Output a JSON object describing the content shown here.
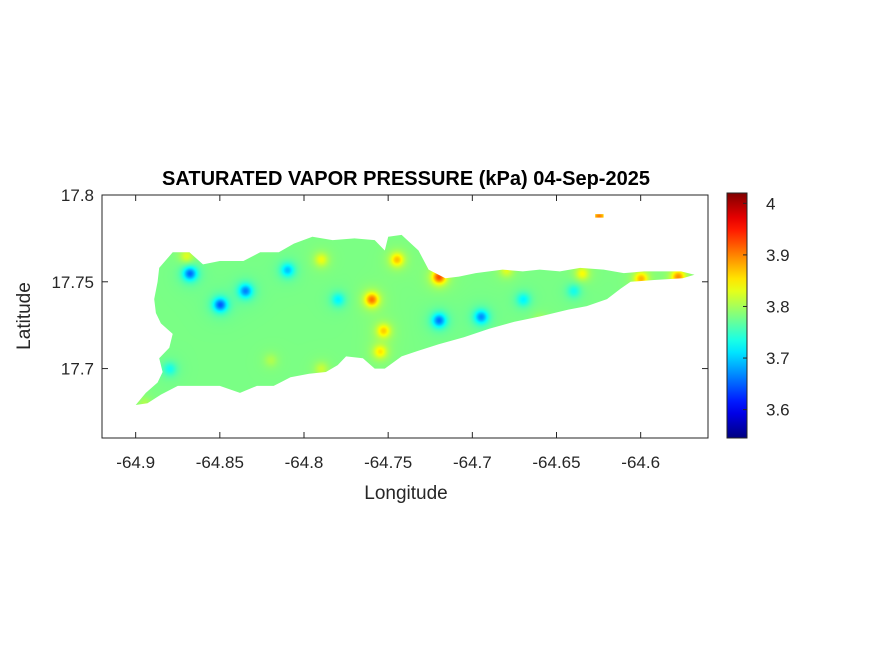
{
  "chart_data": {
    "type": "heatmap",
    "title": "SATURATED VAPOR PRESSURE (kPa) 04-Sep-2025",
    "xlabel": "Longitude",
    "ylabel": "Latitude",
    "xlim": [
      -64.92,
      -64.56
    ],
    "ylim": [
      17.66,
      17.8
    ],
    "x_ticks": [
      -64.9,
      -64.85,
      -64.8,
      -64.75,
      -64.7,
      -64.65,
      -64.6
    ],
    "x_tick_labels": [
      "-64.9",
      "-64.85",
      "-64.8",
      "-64.75",
      "-64.7",
      "-64.65",
      "-64.6"
    ],
    "y_ticks": [
      17.7,
      17.75,
      17.8
    ],
    "y_tick_labels": [
      "17.7",
      "17.75",
      "17.8"
    ],
    "colormap": "jet",
    "clim": [
      3.545,
      4.02
    ],
    "colorbar_ticks": [
      3.6,
      3.7,
      3.8,
      3.9,
      4
    ],
    "colorbar_tick_labels": [
      "3.6",
      "3.7",
      "3.8",
      "3.9",
      "4"
    ],
    "grid": false,
    "background_value": 3.78,
    "field_hotspots": [
      {
        "lon": -64.85,
        "lat": 17.737,
        "value": 3.56
      },
      {
        "lon": -64.868,
        "lat": 17.755,
        "value": 3.57
      },
      {
        "lon": -64.835,
        "lat": 17.745,
        "value": 3.59
      },
      {
        "lon": -64.81,
        "lat": 17.757,
        "value": 3.64
      },
      {
        "lon": -64.78,
        "lat": 17.74,
        "value": 3.68
      },
      {
        "lon": -64.72,
        "lat": 17.728,
        "value": 3.58
      },
      {
        "lon": -64.695,
        "lat": 17.73,
        "value": 3.6
      },
      {
        "lon": -64.67,
        "lat": 17.74,
        "value": 3.68
      },
      {
        "lon": -64.64,
        "lat": 17.745,
        "value": 3.7
      },
      {
        "lon": -64.76,
        "lat": 17.74,
        "value": 3.99
      },
      {
        "lon": -64.753,
        "lat": 17.722,
        "value": 3.92
      },
      {
        "lon": -64.72,
        "lat": 17.753,
        "value": 4.02
      },
      {
        "lon": -64.745,
        "lat": 17.763,
        "value": 3.93
      },
      {
        "lon": -64.578,
        "lat": 17.753,
        "value": 3.97
      },
      {
        "lon": -64.6,
        "lat": 17.752,
        "value": 3.94
      },
      {
        "lon": -64.635,
        "lat": 17.755,
        "value": 3.88
      },
      {
        "lon": -64.68,
        "lat": 17.757,
        "value": 3.86
      },
      {
        "lon": -64.79,
        "lat": 17.763,
        "value": 3.87
      },
      {
        "lon": -64.87,
        "lat": 17.765,
        "value": 3.86
      },
      {
        "lon": -64.755,
        "lat": 17.71,
        "value": 3.9
      },
      {
        "lon": -64.82,
        "lat": 17.705,
        "value": 3.82
      },
      {
        "lon": -64.79,
        "lat": 17.7,
        "value": 3.84
      },
      {
        "lon": -64.88,
        "lat": 17.7,
        "value": 3.7
      },
      {
        "lon": -64.895,
        "lat": 17.68,
        "value": 3.82
      },
      {
        "lon": -64.66,
        "lat": 17.728,
        "value": 3.82
      },
      {
        "lon": -64.7,
        "lat": 17.712,
        "value": 3.74
      },
      {
        "lon": -64.625,
        "lat": 17.788,
        "value": 3.98
      }
    ],
    "island_outline": [
      [
        -64.878,
        17.767
      ],
      [
        -64.868,
        17.767
      ],
      [
        -64.86,
        17.76
      ],
      [
        -64.85,
        17.762
      ],
      [
        -64.836,
        17.762
      ],
      [
        -64.826,
        17.767
      ],
      [
        -64.815,
        17.767
      ],
      [
        -64.806,
        17.772
      ],
      [
        -64.795,
        17.776
      ],
      [
        -64.783,
        17.774
      ],
      [
        -64.77,
        17.775
      ],
      [
        -64.758,
        17.774
      ],
      [
        -64.752,
        17.768
      ],
      [
        -64.75,
        17.776
      ],
      [
        -64.742,
        17.777
      ],
      [
        -64.732,
        17.768
      ],
      [
        -64.726,
        17.757
      ],
      [
        -64.716,
        17.752
      ],
      [
        -64.708,
        17.753
      ],
      [
        -64.698,
        17.755
      ],
      [
        -64.682,
        17.757
      ],
      [
        -64.67,
        17.756
      ],
      [
        -64.66,
        17.757
      ],
      [
        -64.648,
        17.756
      ],
      [
        -64.636,
        17.758
      ],
      [
        -64.622,
        17.757
      ],
      [
        -64.61,
        17.755
      ],
      [
        -64.598,
        17.756
      ],
      [
        -64.588,
        17.756
      ],
      [
        -64.576,
        17.756
      ],
      [
        -64.568,
        17.754
      ],
      [
        -64.575,
        17.752
      ],
      [
        -64.592,
        17.751
      ],
      [
        -64.606,
        17.75
      ],
      [
        -64.612,
        17.746
      ],
      [
        -64.62,
        17.74
      ],
      [
        -64.632,
        17.736
      ],
      [
        -64.643,
        17.734
      ],
      [
        -64.66,
        17.73
      ],
      [
        -64.675,
        17.727
      ],
      [
        -64.69,
        17.723
      ],
      [
        -64.705,
        17.718
      ],
      [
        -64.72,
        17.714
      ],
      [
        -64.733,
        17.71
      ],
      [
        -64.742,
        17.707
      ],
      [
        -64.752,
        17.7
      ],
      [
        -64.758,
        17.7
      ],
      [
        -64.765,
        17.706
      ],
      [
        -64.775,
        17.707
      ],
      [
        -64.78,
        17.702
      ],
      [
        -64.787,
        17.698
      ],
      [
        -64.797,
        17.697
      ],
      [
        -64.808,
        17.695
      ],
      [
        -64.818,
        17.69
      ],
      [
        -64.828,
        17.69
      ],
      [
        -64.838,
        17.686
      ],
      [
        -64.85,
        17.69
      ],
      [
        -64.862,
        17.69
      ],
      [
        -64.875,
        17.69
      ],
      [
        -64.885,
        17.685
      ],
      [
        -64.893,
        17.68
      ],
      [
        -64.9,
        17.679
      ],
      [
        -64.894,
        17.686
      ],
      [
        -64.887,
        17.692
      ],
      [
        -64.884,
        17.698
      ],
      [
        -64.886,
        17.706
      ],
      [
        -64.88,
        17.712
      ],
      [
        -64.878,
        17.72
      ],
      [
        -64.885,
        17.726
      ],
      [
        -64.888,
        17.732
      ],
      [
        -64.889,
        17.74
      ],
      [
        -64.887,
        17.75
      ],
      [
        -64.886,
        17.758
      ]
    ],
    "islet_outline": [
      [
        -64.627,
        17.789
      ],
      [
        -64.622,
        17.789
      ],
      [
        -64.622,
        17.787
      ],
      [
        -64.627,
        17.787
      ]
    ]
  }
}
